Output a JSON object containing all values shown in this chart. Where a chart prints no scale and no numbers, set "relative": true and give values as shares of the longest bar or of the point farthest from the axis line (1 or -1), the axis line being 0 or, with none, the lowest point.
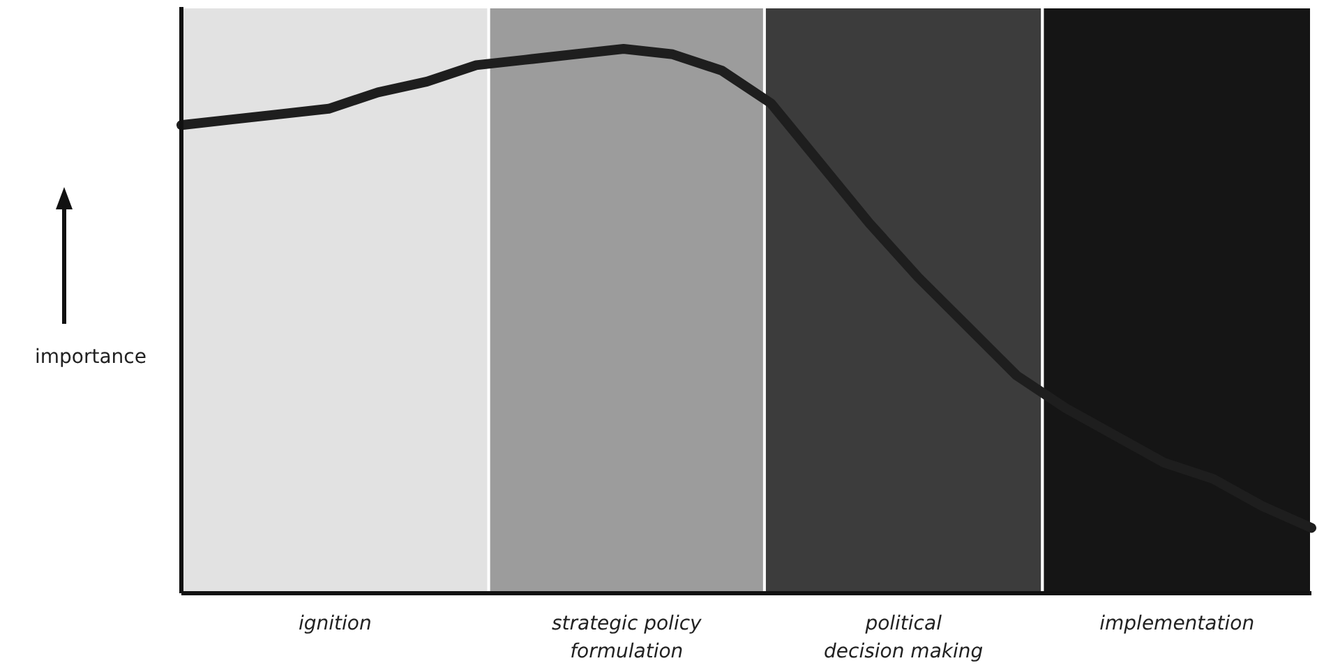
{
  "chart_data": {
    "type": "line",
    "ylabel": "importance",
    "relative": true,
    "categories": [
      null,
      null,
      null,
      null,
      null,
      null,
      null,
      null,
      null,
      null,
      null,
      null,
      null,
      null,
      null,
      null,
      null,
      null,
      null,
      null,
      null,
      null,
      null,
      null
    ],
    "series": [
      {
        "color": "#1e1e1e",
        "values": [
          0.86,
          0.87,
          0.88,
          0.89,
          0.92,
          0.94,
          0.97,
          0.98,
          0.99,
          1,
          0.99,
          0.96,
          0.9,
          0.79,
          0.68,
          0.58,
          0.49,
          0.4,
          0.34,
          0.29,
          0.24,
          0.21,
          0.16,
          0.12
        ]
      }
    ],
    "annotations": [
      "ignition",
      "strategic policy formulation",
      "political decision making",
      "implementation"
    ]
  }
}
